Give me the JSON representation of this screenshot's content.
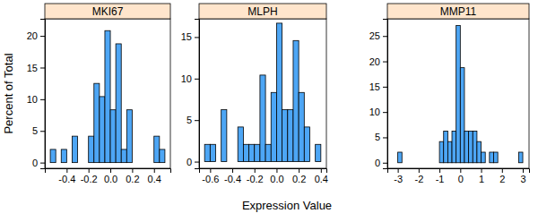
{
  "chart_data": {
    "type": "histogram",
    "x_label": "Expression Value",
    "y_label": "Percent of Total",
    "color": "#4da6f5",
    "panels": [
      {
        "title": "MKI67",
        "bins": [
          -0.55,
          -0.5,
          -0.45,
          -0.4,
          -0.35,
          -0.3,
          -0.25,
          -0.2,
          -0.15,
          -0.1,
          -0.05,
          0,
          0.05,
          0.1,
          0.15,
          0.2,
          0.25,
          0.3,
          0.35,
          0.4,
          0.45,
          0.5
        ],
        "values": [
          2.08,
          0,
          2.08,
          0,
          4.17,
          0,
          0,
          4.17,
          12.5,
          10.42,
          20.83,
          8.33,
          18.75,
          2.08,
          8.33,
          0,
          0,
          0,
          0,
          4.17,
          2.08
        ],
        "xlim": [
          -0.6,
          0.55
        ],
        "ylim": [
          -0.9,
          22.7
        ],
        "xticks": [
          -0.4,
          -0.2,
          {
            "value": 0,
            "label": "0.0"
          },
          0.2,
          0.4
        ],
        "yticks": [
          0,
          5,
          10,
          15,
          20
        ]
      },
      {
        "title": "MLPH",
        "bins": [
          -0.65,
          -0.6,
          -0.55,
          -0.5,
          -0.45,
          -0.4,
          -0.35,
          -0.3,
          -0.25,
          -0.2,
          -0.15,
          -0.1,
          -0.05,
          0,
          0.05,
          0.1,
          0.15,
          0.2,
          0.25,
          0.3,
          0.35,
          0.4
        ],
        "values": [
          2.08,
          2.08,
          0,
          6.25,
          0,
          0,
          4.17,
          2.08,
          2.08,
          2.08,
          10.42,
          2.08,
          8.33,
          16.67,
          6.25,
          6.25,
          14.58,
          8.33,
          4.17,
          0,
          2.08
        ],
        "xlim": [
          -0.7,
          0.45
        ],
        "ylim": [
          -0.8,
          17.2
        ],
        "xticks": [
          -0.6,
          -0.4,
          -0.2,
          {
            "value": 0,
            "label": "0.0"
          },
          0.2,
          0.4
        ],
        "yticks": [
          0,
          5,
          10,
          15
        ]
      },
      {
        "title": "MMP11",
        "bins": [
          -3,
          -2.8,
          -2.6,
          -2.4,
          -2.2,
          -2,
          -1.8,
          -1.6,
          -1.4,
          -1.2,
          -1,
          -0.8,
          -0.6,
          -0.4,
          -0.2,
          0,
          0.2,
          0.4,
          0.6,
          0.8,
          1,
          1.2,
          1.4,
          1.6,
          1.8,
          2,
          2.2,
          2.4,
          2.6,
          2.8,
          3
        ],
        "values": [
          2.08,
          0,
          0,
          0,
          0,
          0,
          0,
          0,
          0,
          0,
          4.17,
          6.25,
          4.17,
          6.25,
          27.08,
          18.75,
          6.25,
          6.25,
          6.25,
          4.17,
          2.08,
          0,
          2.08,
          2.08,
          0,
          0,
          0,
          0,
          0,
          2.08
        ],
        "xlim": [
          -3.5,
          3.3
        ],
        "ylim": [
          -1.1,
          28.4
        ],
        "xticks": [
          -3,
          -2,
          -1,
          0,
          1,
          2,
          3
        ],
        "yticks": [
          0,
          5,
          10,
          15,
          20,
          25
        ]
      }
    ]
  }
}
